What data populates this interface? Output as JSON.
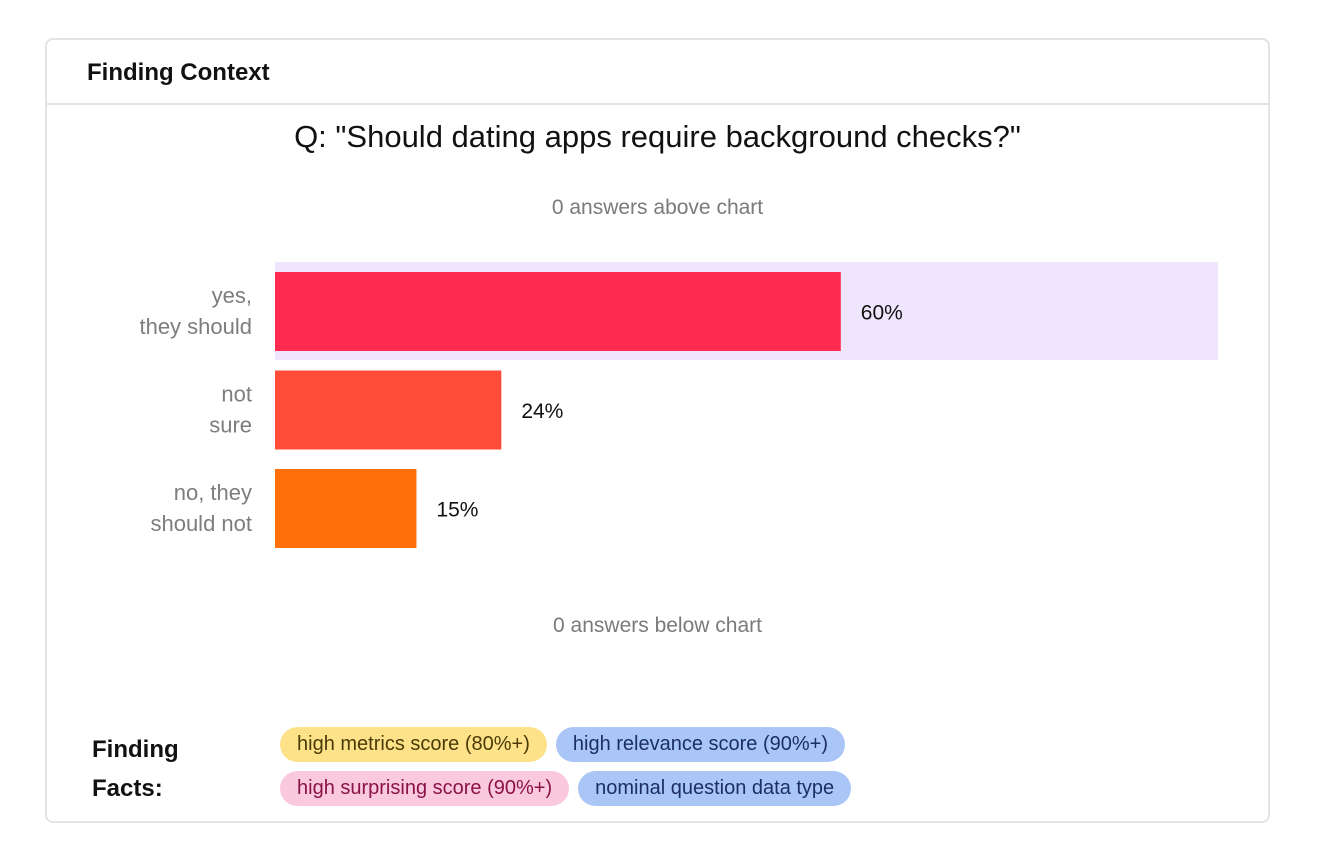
{
  "card": {
    "title": "Finding Context"
  },
  "question": "Q: \"Should dating apps require background checks?\"",
  "notes": {
    "above": "0 answers above chart",
    "below": "0 answers below chart"
  },
  "chart_data": {
    "type": "bar",
    "orientation": "horizontal",
    "categories": [
      [
        "yes,",
        "they should"
      ],
      [
        "not",
        "sure"
      ],
      [
        "no, they",
        "should not"
      ]
    ],
    "values": [
      60,
      24,
      15
    ],
    "value_labels": [
      "60%",
      "24%",
      "15%"
    ],
    "colors": [
      "#ff2a4f",
      "#ff4d3a",
      "#ff6f0a"
    ],
    "highlight": {
      "index": 0,
      "color": "#efe6fd"
    },
    "xlim": [
      0,
      100
    ],
    "title": "",
    "xlabel": "",
    "ylabel": ""
  },
  "facts": {
    "title_line1": "Finding",
    "title_line2": "Facts:",
    "tags": [
      {
        "label": "high metrics score (80%+)",
        "bg": "#fde28a",
        "fg": "#4a3b06"
      },
      {
        "label": "high relevance score (90%+)",
        "bg": "#aac6f6",
        "fg": "#1c2f63"
      },
      {
        "label": "high surprising score (90%+)",
        "bg": "#fbc9dd",
        "fg": "#8a1346"
      },
      {
        "label": "nominal question data type",
        "bg": "#aac6f6",
        "fg": "#1c2f63"
      }
    ]
  }
}
